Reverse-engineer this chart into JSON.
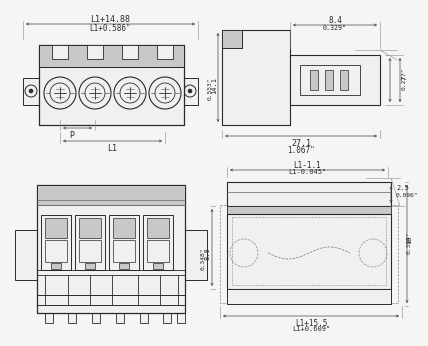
{
  "bg_color": "#f5f5f5",
  "line_color": "#2a2a2a",
  "dim_color": "#444444",
  "gray_fill": "#c8c8c8",
  "gray_mid": "#a0a0a0",
  "gray_dark": "#707070",
  "white_fill": "#f0f0f0",
  "dims": {
    "tl_dim1": "L1+14.88",
    "tl_dim2": "L1+0.586\"",
    "tl_p": "P",
    "tl_l1": "L1",
    "tr_w1": "8.4",
    "tr_w2": "0.329\"",
    "tr_h1": "14.1",
    "tr_h2": "0.553\"",
    "tr_bot1": "27.1",
    "tr_bot2": "1.067\"",
    "tr_r1": "7",
    "tr_r2": "0.277\"",
    "br_top1": "L1-1.1",
    "br_top2": "L1-0.045\"",
    "br_tr1": "2.5",
    "br_tr2": "0.096\"",
    "br_bot1": "L1+15.5",
    "br_bot2": "L1+0.609\"",
    "br_l1": "8.8",
    "br_l2": "0.348\"",
    "br_r1": "10",
    "br_r2": "0.394\""
  }
}
